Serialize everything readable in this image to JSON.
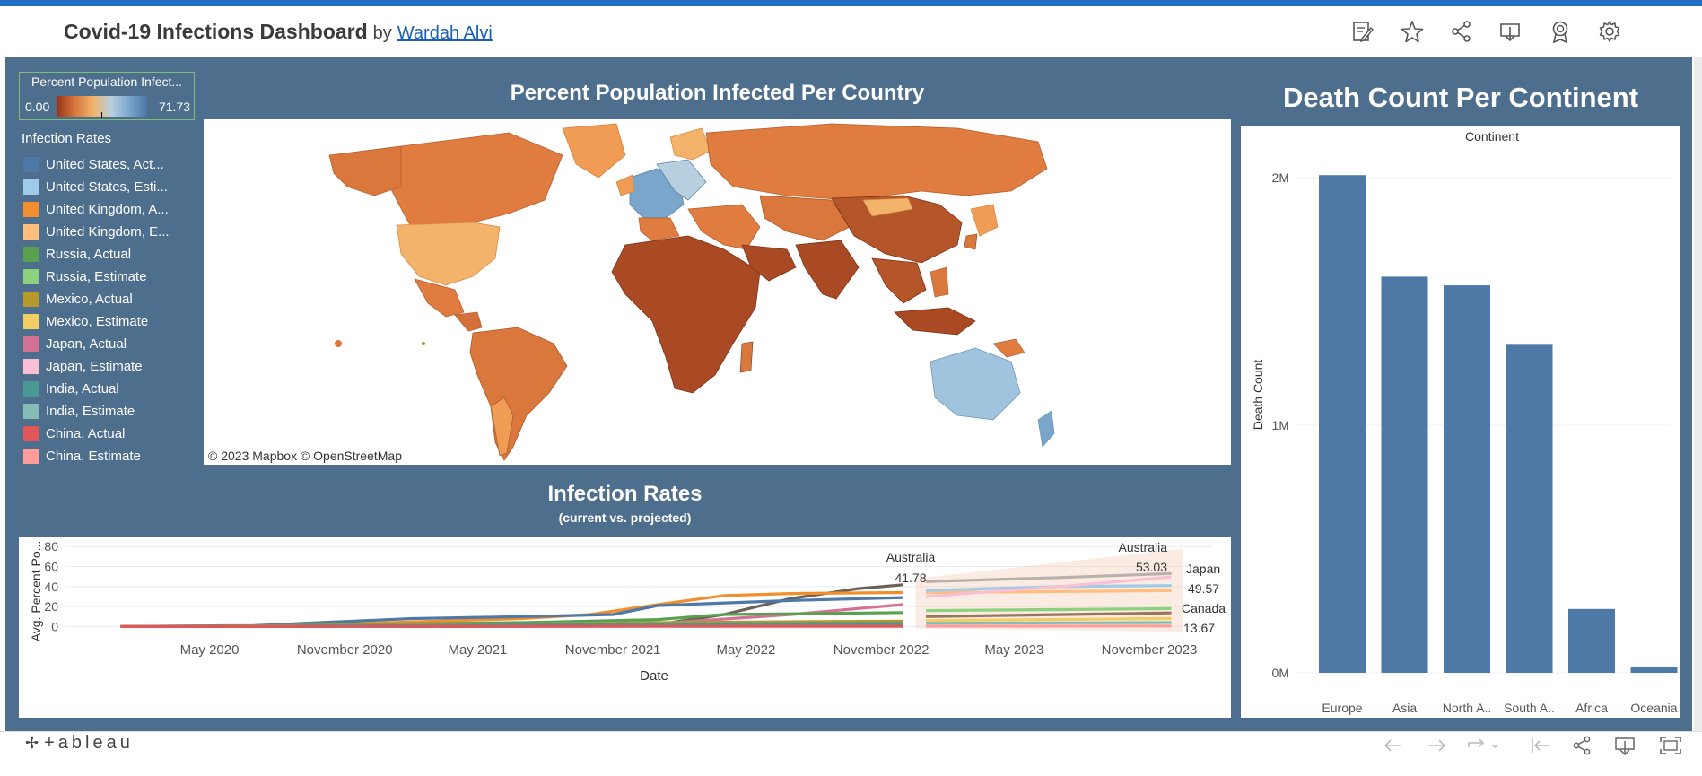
{
  "header": {
    "title": "Covid-19 Infections Dashboard",
    "by": "by",
    "author": "Wardah Alvi"
  },
  "icons": [
    "edit-icon",
    "favorite-star-icon",
    "share-icon",
    "download-icon",
    "badge-icon",
    "settings-gear-icon"
  ],
  "color_legend": {
    "title": "Percent Population Infect...",
    "min": "0.00",
    "max": "71.73"
  },
  "line_legend": {
    "title": "Infection Rates",
    "items": [
      {
        "label": "United States, Act...",
        "color": "#4e79a7"
      },
      {
        "label": "United States, Esti...",
        "color": "#a0cbe8"
      },
      {
        "label": "United Kingdom, A...",
        "color": "#f28e2b"
      },
      {
        "label": "United Kingdom, E...",
        "color": "#ffbe7d"
      },
      {
        "label": "Russia, Actual",
        "color": "#59a14f"
      },
      {
        "label": "Russia, Estimate",
        "color": "#8cd17d"
      },
      {
        "label": "Mexico, Actual",
        "color": "#b6992d"
      },
      {
        "label": "Mexico, Estimate",
        "color": "#f1ce63"
      },
      {
        "label": "Japan, Actual",
        "color": "#d37295"
      },
      {
        "label": "Japan, Estimate",
        "color": "#fabfd2"
      },
      {
        "label": "India, Actual",
        "color": "#499894"
      },
      {
        "label": "India, Estimate",
        "color": "#86bcb6"
      },
      {
        "label": "China, Actual",
        "color": "#e15759"
      },
      {
        "label": "China, Estimate",
        "color": "#ff9d9a"
      }
    ]
  },
  "map_sheet": {
    "title": "Percent Population Infected Per Country",
    "attribution": "© 2023 Mapbox  © OpenStreetMap"
  },
  "line_sheet": {
    "title": "Infection Rates",
    "subtitle": "(current vs. projected)"
  },
  "bar_sheet": {
    "title": "Death Count Per Continent"
  },
  "chart_data": [
    {
      "type": "line",
      "title": "Infection Rates",
      "subtitle": "(current vs. projected)",
      "xlabel": "Date",
      "ylabel": "Avg. Percent Po...",
      "x_ticks": [
        "May 2020",
        "November 2020",
        "May 2021",
        "November 2021",
        "May 2022",
        "November 2022",
        "May 2023",
        "November 2023"
      ],
      "y_ticks": [
        0,
        20,
        40,
        60,
        80
      ],
      "ylim": [
        -5,
        82
      ],
      "grid": true,
      "annotations": [
        {
          "label": "Australia",
          "value": "41.78"
        },
        {
          "label": "Australia",
          "value": "53.03"
        },
        {
          "label": "Japan",
          "value": "49.57"
        },
        {
          "label": "Canada",
          "value": "13.67"
        }
      ],
      "series": [
        {
          "name": "Australia",
          "color": "#6b5f57",
          "x": [
            "2020-01",
            "2020-07",
            "2021-01",
            "2021-07",
            "2022-01",
            "2022-04",
            "2022-07",
            "2022-10",
            "2022-12"
          ],
          "y": [
            0,
            0,
            0.1,
            0.2,
            2,
            12,
            28,
            38,
            41.78
          ]
        },
        {
          "name": "Australia",
          "color": "#bab0ac",
          "x": [
            "2023-01",
            "2023-07",
            "2023-12"
          ],
          "y": [
            45,
            49,
            53.03
          ]
        },
        {
          "name": "United Kingdom, Actual",
          "color": "#f28e2b",
          "x": [
            "2020-01",
            "2020-07",
            "2021-01",
            "2021-07",
            "2021-10",
            "2022-01",
            "2022-04",
            "2022-07",
            "2022-12"
          ],
          "y": [
            0,
            0.5,
            4,
            8,
            12,
            22,
            31,
            33,
            34
          ]
        },
        {
          "name": "United Kingdom, Estimate",
          "color": "#ffbe7d",
          "x": [
            "2023-01",
            "2023-07",
            "2023-12"
          ],
          "y": [
            34,
            35,
            36
          ]
        },
        {
          "name": "United States, Actual",
          "color": "#4e79a7",
          "x": [
            "2020-01",
            "2020-07",
            "2020-12",
            "2021-02",
            "2021-07",
            "2021-11",
            "2022-01",
            "2022-07",
            "2022-12"
          ],
          "y": [
            0,
            1,
            6,
            8,
            10,
            12,
            21,
            26,
            29
          ]
        },
        {
          "name": "United States, Estimate",
          "color": "#a0cbe8",
          "x": [
            "2023-01",
            "2023-07",
            "2023-12"
          ],
          "y": [
            36,
            40,
            41
          ]
        },
        {
          "name": "Japan, Actual",
          "color": "#d37295",
          "x": [
            "2020-01",
            "2021-01",
            "2021-09",
            "2022-01",
            "2022-07",
            "2022-12"
          ],
          "y": [
            0,
            0.3,
            1,
            3,
            12,
            22
          ]
        },
        {
          "name": "Japan, Estimate",
          "color": "#fabfd2",
          "x": [
            "2023-01",
            "2023-07",
            "2023-12"
          ],
          "y": [
            30,
            40,
            49.57
          ]
        },
        {
          "name": "Russia, Actual",
          "color": "#59a14f",
          "x": [
            "2020-01",
            "2020-07",
            "2021-01",
            "2021-07",
            "2022-01",
            "2022-04",
            "2022-12"
          ],
          "y": [
            0,
            0.5,
            2.5,
            4,
            7,
            12,
            14
          ]
        },
        {
          "name": "Russia, Estimate",
          "color": "#8cd17d",
          "x": [
            "2023-01",
            "2023-07",
            "2023-12"
          ],
          "y": [
            16,
            17,
            18
          ]
        },
        {
          "name": "Canada",
          "color": "#9c755f",
          "x": [
            "2023-01",
            "2023-12"
          ],
          "y": [
            10,
            13.67
          ]
        },
        {
          "name": "Mexico, Actual",
          "color": "#b6992d",
          "x": [
            "2020-01",
            "2021-01",
            "2022-01",
            "2022-12"
          ],
          "y": [
            0,
            1.5,
            4,
            5.5
          ]
        },
        {
          "name": "Mexico, Estimate",
          "color": "#f1ce63",
          "x": [
            "2023-01",
            "2023-12"
          ],
          "y": [
            6,
            8
          ]
        },
        {
          "name": "India, Actual",
          "color": "#499894",
          "x": [
            "2020-01",
            "2021-01",
            "2022-01",
            "2022-12"
          ],
          "y": [
            0,
            0.8,
            2.5,
            3.2
          ]
        },
        {
          "name": "India, Estimate",
          "color": "#86bcb6",
          "x": [
            "2023-01",
            "2023-12"
          ],
          "y": [
            3.3,
            4
          ]
        },
        {
          "name": "China, Actual",
          "color": "#e15759",
          "x": [
            "2020-01",
            "2022-12"
          ],
          "y": [
            0,
            0.3
          ]
        },
        {
          "name": "China, Estimate",
          "color": "#ff9d9a",
          "x": [
            "2023-01",
            "2023-12"
          ],
          "y": [
            0.4,
            0.6
          ]
        }
      ]
    },
    {
      "type": "bar",
      "title": "Death Count Per Continent",
      "xlabel": "Continent",
      "ylabel": "Death Count",
      "categories": [
        "Europe",
        "Asia",
        "North A..",
        "South A..",
        "Africa",
        "Oceania"
      ],
      "values": [
        2010000,
        1600000,
        1565000,
        1325000,
        258000,
        22000
      ],
      "y_ticks": [
        {
          "v": 0,
          "label": "0M"
        },
        {
          "v": 1000000,
          "label": "1M"
        },
        {
          "v": 2000000,
          "label": "2M"
        }
      ],
      "ylim": [
        0,
        2000000
      ],
      "color": "#4e79a7",
      "grid": true
    }
  ],
  "footer": {
    "brand": "+ableau",
    "icons": [
      "undo-icon",
      "redo-icon",
      "replay-icon",
      "revert-icon",
      "share-icon",
      "download-icon",
      "fullscreen-icon"
    ]
  }
}
